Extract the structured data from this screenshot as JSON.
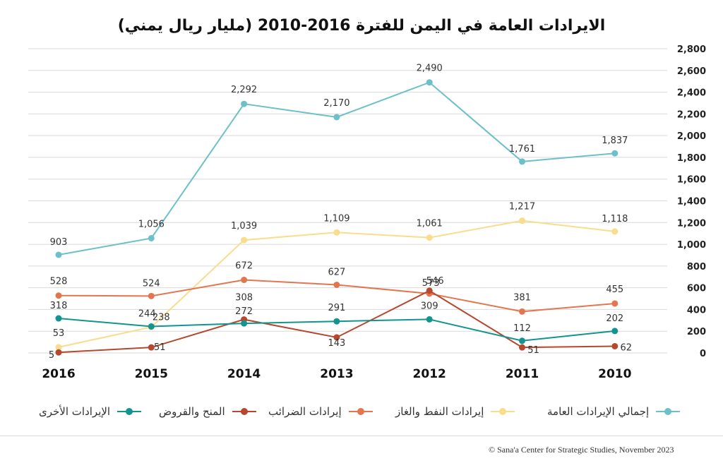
{
  "title": "الايرادات العامة في اليمن للفترة 2016-2010 (مليار ريال يمني)",
  "source": "© Sana'a Center for Strategic Studies, November 2023",
  "chart_data": {
    "type": "line",
    "title": "الايرادات العامة في اليمن للفترة 2016-2010 (مليار ريال يمني)",
    "xlabel": "",
    "ylabel": "",
    "categories": [
      "2016",
      "2015",
      "2014",
      "2013",
      "2012",
      "2011",
      "2010"
    ],
    "ylim": [
      0,
      2800
    ],
    "yticks": [
      0,
      200,
      400,
      600,
      800,
      1000,
      1200,
      1400,
      1600,
      1800,
      2000,
      2200,
      2400,
      2600,
      2800
    ],
    "grid": true,
    "y_axis_side": "right",
    "legend_position": "bottom",
    "series": [
      {
        "name": "إجمالي الإيرادات العامة",
        "color": "#6cc0c9",
        "values": [
          903,
          1056,
          2292,
          2170,
          2490,
          1761,
          1837
        ]
      },
      {
        "name": "إيرادات النفط والغاز",
        "color": "#f9dc8c",
        "values": [
          53,
          238,
          1039,
          1109,
          1061,
          1217,
          1118
        ]
      },
      {
        "name": "إيرادات الضرائب",
        "color": "#e3764e",
        "values": [
          528,
          524,
          672,
          627,
          546,
          381,
          455
        ]
      },
      {
        "name": "المنح والقروض",
        "color": "#b5482e",
        "values": [
          5,
          51,
          308,
          143,
          573,
          51,
          62
        ]
      },
      {
        "name": "الإيرادات الأخرى",
        "color": "#12948f",
        "values": [
          318,
          244,
          272,
          291,
          309,
          112,
          202
        ]
      }
    ]
  }
}
